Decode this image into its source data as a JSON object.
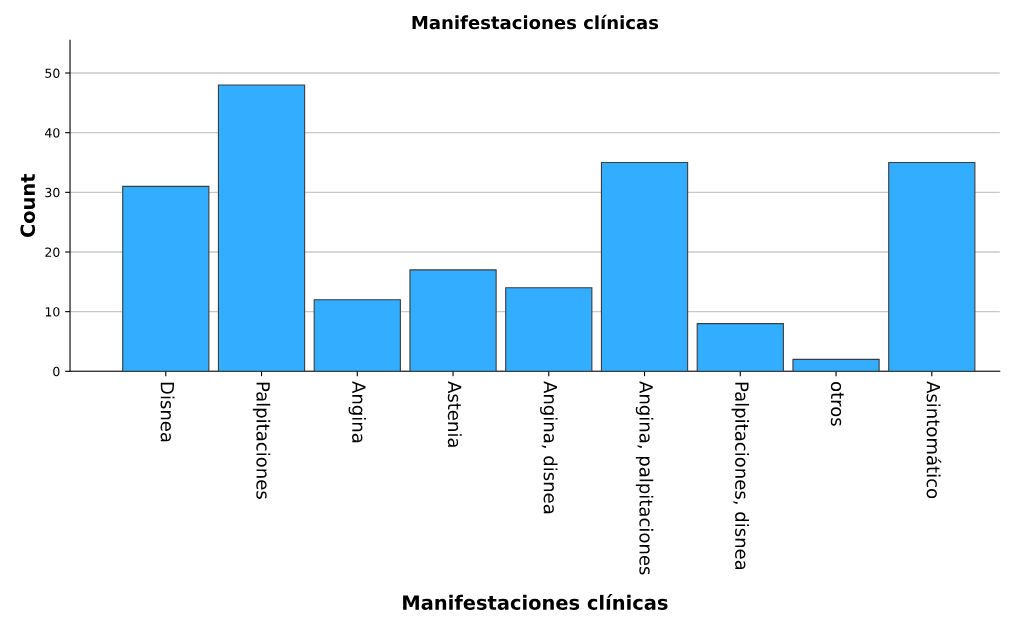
{
  "chart_data": {
    "type": "bar",
    "title": "Manifestaciones clínicas",
    "xlabel": "Manifestaciones clínicas",
    "ylabel": "Count",
    "categories": [
      "Disnea",
      "Palpitaciones",
      "Angina",
      "Astenia",
      "Angina, disnea",
      "Angina, palpitaciones",
      "Palpitaciones, disnea",
      "otros",
      "Asintomático"
    ],
    "values": [
      31,
      48,
      12,
      17,
      14,
      35,
      8,
      2,
      35
    ],
    "color": "#33adff",
    "ylim": [
      0,
      55.5
    ],
    "yticks": [
      0,
      10,
      20,
      30,
      40,
      50
    ],
    "grid": "y",
    "legend": false
  }
}
